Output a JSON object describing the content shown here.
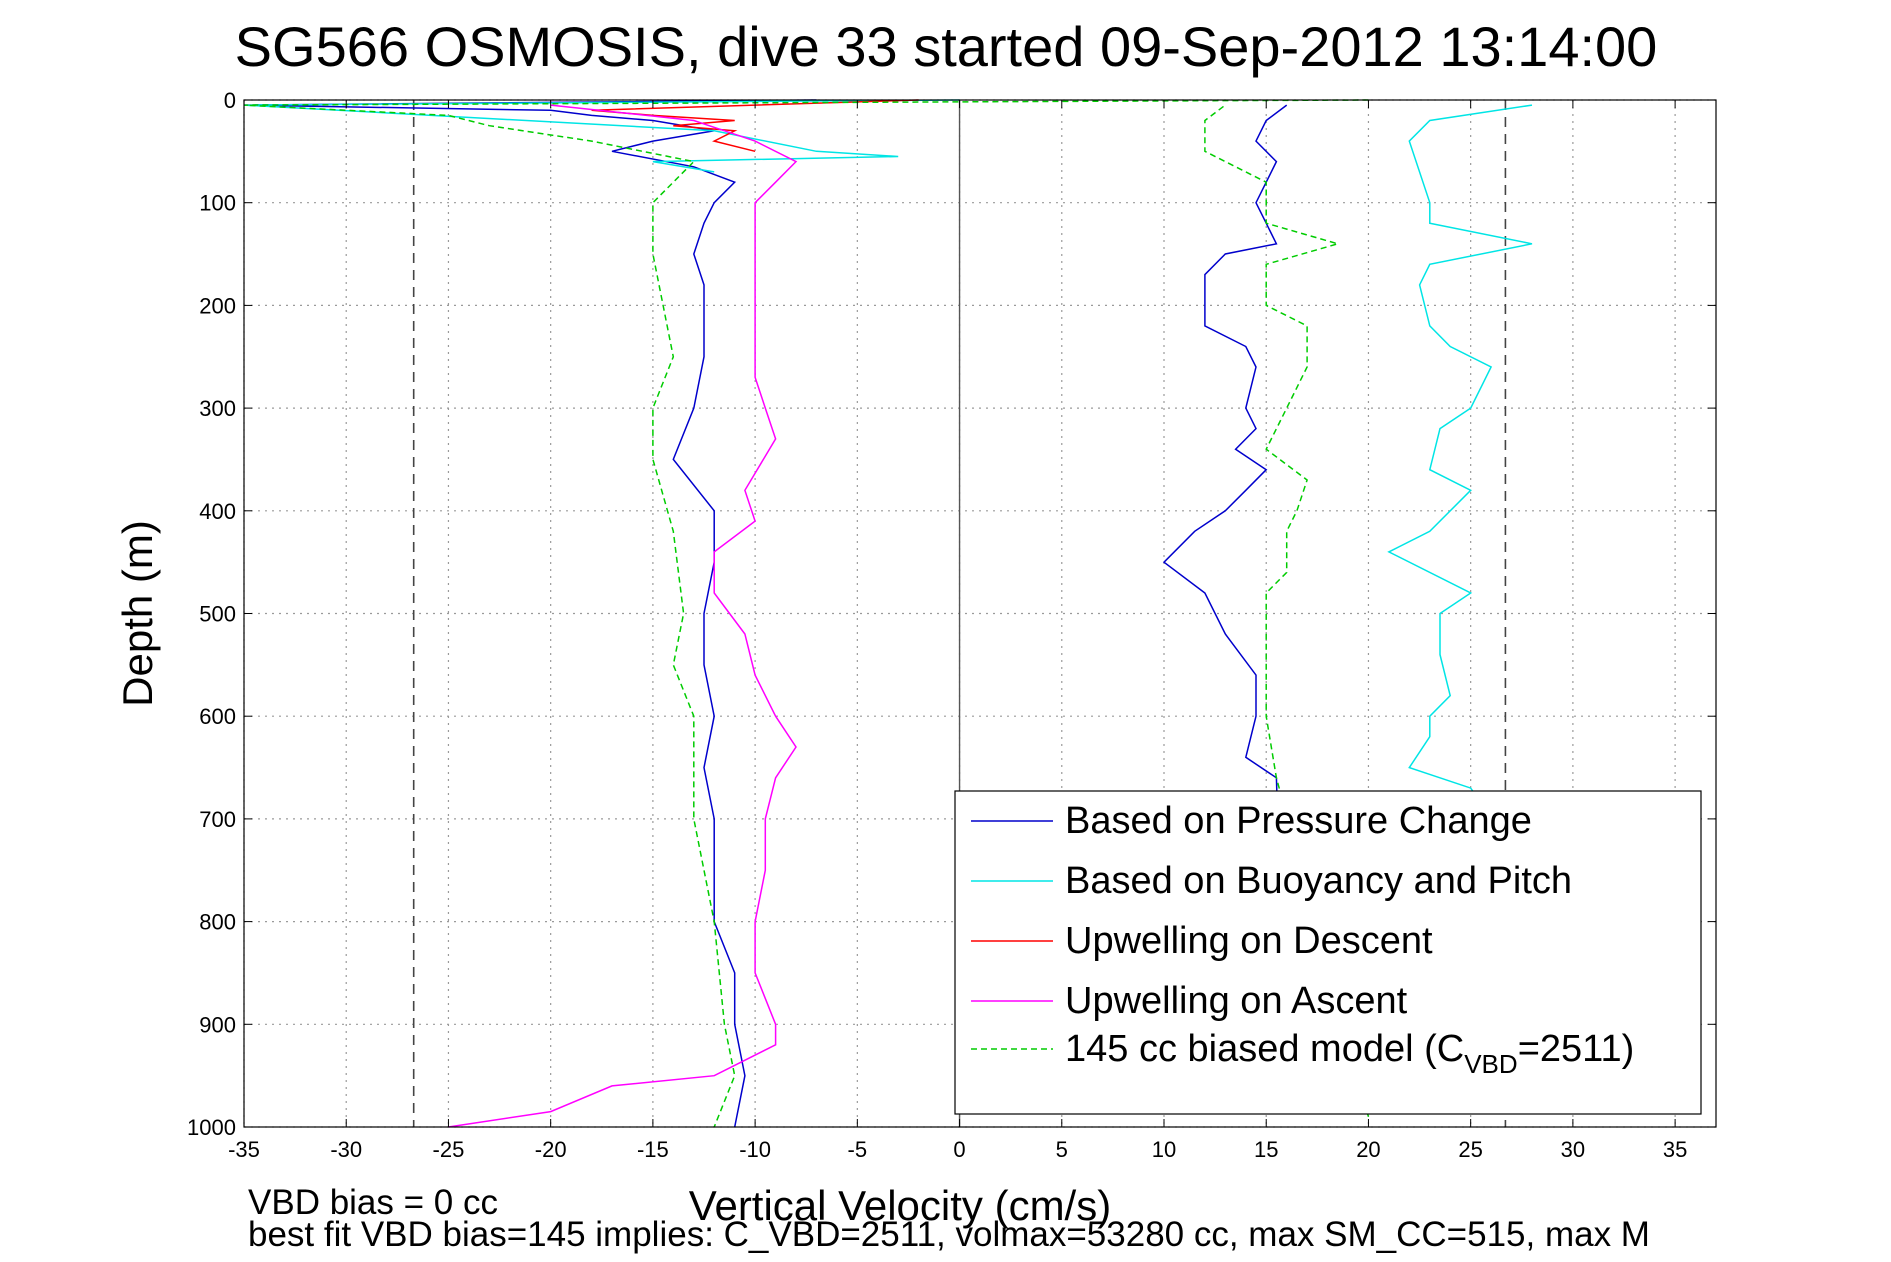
{
  "chart_data": {
    "type": "line",
    "title": "SG566 OSMOSIS, dive 33 started 09-Sep-2012 13:14:00",
    "xlabel": "Vertical Velocity (cm/s)",
    "ylabel": "Depth (m)",
    "xlim": [
      -35,
      37
    ],
    "ylim": [
      0,
      1000
    ],
    "y_reversed": true,
    "grid": true,
    "legend_position": "bottom-right",
    "x_ticks": [
      -35,
      -30,
      -25,
      -20,
      -15,
      -10,
      -5,
      0,
      5,
      10,
      15,
      20,
      25,
      30,
      35
    ],
    "y_ticks": [
      0,
      100,
      200,
      300,
      400,
      500,
      600,
      700,
      800,
      900,
      1000
    ],
    "reference_lines_x": [
      -26.7,
      26.7
    ],
    "zero_line_x": 0,
    "footer_lines": [
      "VBD bias = 0 cc",
      "best fit VBD bias=145 implies: C_VBD=2511, volmax=53280 cc, max SM_CC=515, max M"
    ],
    "series": [
      {
        "name": "Based on Pressure Change",
        "color": "#0000cc",
        "style": "solid",
        "points": [
          [
            -7,
            0
          ],
          [
            -35,
            5
          ],
          [
            -20,
            10
          ],
          [
            -18,
            15
          ],
          [
            -15,
            20
          ],
          [
            -12,
            30
          ],
          [
            -15,
            40
          ],
          [
            -17,
            50
          ],
          [
            -13,
            65
          ],
          [
            -11,
            80
          ],
          [
            -12,
            100
          ],
          [
            -12.5,
            120
          ],
          [
            -13,
            150
          ],
          [
            -12.5,
            180
          ],
          [
            -12.5,
            250
          ],
          [
            -13,
            300
          ],
          [
            -14,
            350
          ],
          [
            -12,
            400
          ],
          [
            -12,
            450
          ],
          [
            -12.5,
            500
          ],
          [
            -12.5,
            550
          ],
          [
            -12,
            600
          ],
          [
            -12.5,
            650
          ],
          [
            -12,
            700
          ],
          [
            -12,
            750
          ],
          [
            -12,
            800
          ],
          [
            -11,
            850
          ],
          [
            -11,
            900
          ],
          [
            -10.5,
            950
          ],
          [
            -11,
            1000
          ]
        ]
      },
      {
        "name": "Based on Pressure Change (ascent)",
        "color": "#0000cc",
        "style": "solid",
        "points": [
          [
            16,
            980
          ],
          [
            15.5,
            660
          ],
          [
            14,
            640
          ],
          [
            14.5,
            600
          ],
          [
            14.5,
            560
          ],
          [
            13,
            520
          ],
          [
            12,
            480
          ],
          [
            10,
            450
          ],
          [
            11.5,
            420
          ],
          [
            13,
            400
          ],
          [
            14,
            380
          ],
          [
            15,
            360
          ],
          [
            13.5,
            340
          ],
          [
            14.5,
            320
          ],
          [
            14,
            300
          ],
          [
            14.5,
            260
          ],
          [
            14,
            240
          ],
          [
            12,
            220
          ],
          [
            12,
            200
          ],
          [
            12,
            170
          ],
          [
            13,
            150
          ],
          [
            15.5,
            140
          ],
          [
            15,
            120
          ],
          [
            14.5,
            100
          ],
          [
            15,
            80
          ],
          [
            15.5,
            60
          ],
          [
            14.5,
            40
          ],
          [
            15,
            20
          ],
          [
            16,
            5
          ]
        ]
      },
      {
        "name": "Based on Buoyancy and Pitch",
        "color": "#00e5e5",
        "style": "solid",
        "points": [
          [
            0,
            0
          ],
          [
            -35,
            5
          ],
          [
            -12,
            30
          ],
          [
            -7,
            50
          ],
          [
            -3,
            55
          ],
          [
            -15,
            60
          ],
          [
            -12,
            70
          ]
        ]
      },
      {
        "name": "Based on Buoyancy and Pitch (ascent)",
        "color": "#00e5e5",
        "style": "solid",
        "points": [
          [
            36,
            985
          ],
          [
            25,
            670
          ],
          [
            22,
            650
          ],
          [
            23,
            620
          ],
          [
            23,
            600
          ],
          [
            24,
            580
          ],
          [
            23.5,
            540
          ],
          [
            23.5,
            500
          ],
          [
            25,
            480
          ],
          [
            21,
            440
          ],
          [
            23,
            420
          ],
          [
            25,
            380
          ],
          [
            23,
            360
          ],
          [
            23.5,
            320
          ],
          [
            25,
            300
          ],
          [
            26,
            260
          ],
          [
            24,
            240
          ],
          [
            23,
            220
          ],
          [
            22.5,
            180
          ],
          [
            23,
            160
          ],
          [
            28,
            140
          ],
          [
            23,
            120
          ],
          [
            23,
            100
          ],
          [
            22,
            40
          ],
          [
            23,
            20
          ],
          [
            28,
            5
          ]
        ]
      },
      {
        "name": "Upwelling on Descent",
        "color": "#ff0000",
        "style": "solid",
        "points": [
          [
            -2,
            0
          ],
          [
            -18,
            10
          ],
          [
            -15,
            15
          ],
          [
            -11,
            20
          ],
          [
            -14,
            25
          ],
          [
            -11,
            30
          ],
          [
            -12,
            40
          ],
          [
            -10,
            50
          ]
        ]
      },
      {
        "name": "Upwelling on Ascent",
        "color": "#ff00ff",
        "style": "solid",
        "points": [
          [
            -25,
            1000
          ],
          [
            -20,
            985
          ],
          [
            -17,
            960
          ],
          [
            -12,
            950
          ],
          [
            -9,
            920
          ],
          [
            -9,
            900
          ],
          [
            -10,
            850
          ],
          [
            -10,
            800
          ],
          [
            -9.5,
            750
          ],
          [
            -9.5,
            700
          ],
          [
            -9,
            660
          ],
          [
            -8,
            630
          ],
          [
            -9,
            600
          ],
          [
            -10,
            560
          ],
          [
            -10.5,
            520
          ],
          [
            -12,
            480
          ],
          [
            -12,
            440
          ],
          [
            -10,
            410
          ],
          [
            -10.5,
            380
          ],
          [
            -9,
            330
          ],
          [
            -9.5,
            300
          ],
          [
            -10,
            270
          ],
          [
            -10,
            240
          ],
          [
            -10,
            210
          ],
          [
            -10,
            180
          ],
          [
            -10,
            150
          ],
          [
            -10,
            100
          ],
          [
            -9,
            80
          ],
          [
            -8,
            60
          ],
          [
            -10,
            40
          ],
          [
            -13,
            20
          ],
          [
            -20,
            5
          ]
        ]
      },
      {
        "name": "145 cc biased model (C_VBD=2511)",
        "color": "#00cc00",
        "style": "dashed",
        "points": [
          [
            20,
            0
          ],
          [
            -35,
            5
          ],
          [
            -25,
            15
          ],
          [
            -23,
            25
          ],
          [
            -18,
            40
          ],
          [
            -13,
            60
          ],
          [
            -14,
            80
          ],
          [
            -15,
            100
          ],
          [
            -15,
            150
          ],
          [
            -14,
            250
          ],
          [
            -15,
            300
          ],
          [
            -15,
            350
          ],
          [
            -14,
            420
          ],
          [
            -13.5,
            500
          ],
          [
            -14,
            550
          ],
          [
            -13,
            600
          ],
          [
            -13,
            700
          ],
          [
            -12,
            800
          ],
          [
            -11.5,
            900
          ],
          [
            -11,
            950
          ],
          [
            -12,
            1000
          ]
        ]
      },
      {
        "name": "145 cc biased model (ascent)",
        "color": "#00cc00",
        "style": "dashed",
        "points": [
          [
            20,
            990
          ],
          [
            15.5,
            660
          ],
          [
            15,
            600
          ],
          [
            15,
            520
          ],
          [
            15,
            480
          ],
          [
            16,
            460
          ],
          [
            16,
            420
          ],
          [
            16.5,
            400
          ],
          [
            17,
            370
          ],
          [
            15,
            340
          ],
          [
            16,
            300
          ],
          [
            17,
            260
          ],
          [
            17,
            220
          ],
          [
            15,
            200
          ],
          [
            15,
            160
          ],
          [
            18.5,
            140
          ],
          [
            15,
            120
          ],
          [
            15,
            80
          ],
          [
            12,
            50
          ],
          [
            12,
            20
          ],
          [
            13,
            5
          ]
        ]
      }
    ]
  },
  "legend": {
    "entries": [
      {
        "label": "Based on Pressure Change",
        "color": "#0000cc",
        "style": "solid"
      },
      {
        "label": "Based on Buoyancy and Pitch",
        "color": "#00e5e5",
        "style": "solid"
      },
      {
        "label": "Upwelling on Descent",
        "color": "#ff0000",
        "style": "solid"
      },
      {
        "label": "Upwelling on Ascent",
        "color": "#ff00ff",
        "style": "solid"
      },
      {
        "label": "145 cc biased model (C",
        "sub": "VBD",
        "suffix": "=2511)",
        "color": "#00cc00",
        "style": "dashed"
      }
    ]
  }
}
